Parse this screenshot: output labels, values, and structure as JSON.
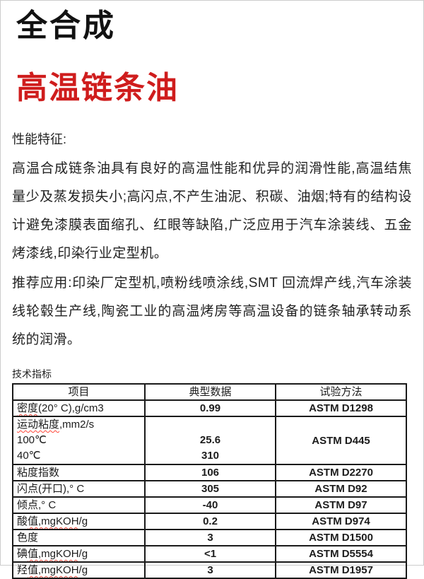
{
  "page": {
    "title_black": "全合成",
    "title_red": "高温链条油",
    "accent_red": "#cf1d1d",
    "squiggle_red": "#ff4538"
  },
  "sections": {
    "performance_label": "性能特征:",
    "performance_text": "高温合成链条油具有良好的高温性能和优异的润滑性能,高温结焦量少及蒸发损失小;高闪点,不产生油泥、积碳、油烟;特有的结构设计避免漆膜表面缩孔、红眼等缺陷,广泛应用于汽车涂装线、五金烤漆线,印染行业定型机。",
    "application_text": "推荐应用:印染厂定型机,喷粉线喷涂线,SMT 回流焊产线,汽车涂装线轮毂生产线,陶瓷工业的高温烤房等高温设备的链条轴承转动系统的润滑。",
    "table_label": "技术指标"
  },
  "table": {
    "headers": [
      "项目",
      "典型数据",
      "试验方法"
    ],
    "rows": [
      {
        "item": "密度(20° C),g/cm3",
        "sq": "密度",
        "value": "0.99",
        "method": "ASTM D1298"
      },
      {
        "item_lines": [
          "运动粘度,mm2/s",
          "100℃",
          "40℃"
        ],
        "sq": "运动粘度",
        "value_lines": [
          "",
          "25.6",
          "310"
        ],
        "method": "ASTM D445"
      },
      {
        "item": "粘度指数",
        "value": "106",
        "method": "ASTM D2270"
      },
      {
        "item": "闪点(开口),° C",
        "value": "305",
        "method": "ASTM D92"
      },
      {
        "item": "倾点,° C",
        "value": "-40",
        "method": "ASTM D97"
      },
      {
        "item": "酸值,mgKOH/g",
        "sq": "值,mgKOH",
        "value": "0.2",
        "method": "ASTM D974"
      },
      {
        "item": "色度",
        "value": "3",
        "method": "ASTM D1500"
      },
      {
        "item": "碘值,mgKOH/g",
        "sq": "值,mgKOH",
        "value": "<1",
        "method": "ASTM D5554"
      },
      {
        "item": "羟值,mgKOH/g",
        "sq": "值,mgKOH",
        "value": "3",
        "method": "ASTM D1957"
      }
    ]
  }
}
